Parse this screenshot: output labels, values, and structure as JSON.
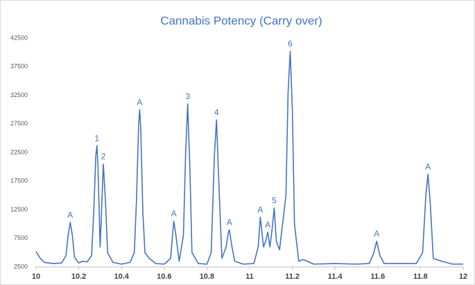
{
  "chart_data": {
    "type": "line",
    "title": "Cannabis Potency (Carry over)",
    "series": [
      {
        "color": "#4472c4",
        "x": [
          10,
          10.01,
          10.02,
          10.04,
          10.08,
          10.12,
          10.14,
          10.15,
          10.16,
          10.17,
          10.18,
          10.2,
          10.22,
          10.24,
          10.26,
          10.27,
          10.28,
          10.285,
          10.29,
          10.3,
          10.315,
          10.325,
          10.335,
          10.36,
          10.4,
          10.44,
          10.46,
          10.47,
          10.48,
          10.485,
          10.49,
          10.5,
          10.51,
          10.53,
          10.56,
          10.6,
          10.63,
          10.64,
          10.645,
          10.655,
          10.67,
          10.69,
          10.7,
          10.71,
          10.72,
          10.73,
          10.76,
          10.8,
          10.82,
          10.835,
          10.845,
          10.855,
          10.87,
          10.89,
          10.9,
          10.905,
          10.915,
          10.93,
          10.97,
          11.02,
          11.04,
          11.05,
          11.065,
          11.075,
          11.085,
          11.095,
          11.105,
          11.115,
          11.125,
          11.14,
          11.17,
          11.18,
          11.19,
          11.2,
          11.21,
          11.23,
          11.25,
          11.3,
          11.4,
          11.5,
          11.56,
          11.58,
          11.595,
          11.61,
          11.63,
          11.7,
          11.78,
          11.81,
          11.825,
          11.835,
          11.845,
          11.86,
          11.9,
          11.95,
          12
        ],
        "values": [
          5200,
          4600,
          4000,
          3300,
          3100,
          3200,
          4500,
          8000,
          10300,
          8000,
          4200,
          3200,
          3500,
          3400,
          4500,
          12000,
          22000,
          23700,
          20000,
          6000,
          20500,
          14000,
          5000,
          3300,
          3000,
          3300,
          5000,
          14000,
          27000,
          30000,
          27000,
          12000,
          5000,
          4000,
          3100,
          3000,
          4000,
          8500,
          10500,
          8000,
          3500,
          8000,
          22000,
          31000,
          20000,
          5000,
          3100,
          3000,
          5000,
          22000,
          28200,
          18000,
          4000,
          6000,
          8500,
          9000,
          6500,
          3500,
          3000,
          3100,
          6000,
          11200,
          6000,
          7000,
          8600,
          6000,
          9000,
          12800,
          7000,
          5500,
          15000,
          33000,
          40200,
          30000,
          10000,
          3500,
          3800,
          3000,
          3100,
          3000,
          3100,
          4800,
          7000,
          4500,
          3100,
          3100,
          3100,
          5000,
          15000,
          18700,
          14000,
          4000,
          3500,
          3000,
          3000
        ]
      }
    ],
    "annotations": [
      {
        "text": "A",
        "x": 10.16,
        "y": 10300
      },
      {
        "text": "1",
        "x": 10.285,
        "y": 23700
      },
      {
        "text": "2",
        "x": 10.315,
        "y": 20500
      },
      {
        "text": "A",
        "x": 10.485,
        "y": 30000
      },
      {
        "text": "A",
        "x": 10.645,
        "y": 10500
      },
      {
        "text": "3",
        "x": 10.71,
        "y": 31000
      },
      {
        "text": "4",
        "x": 10.845,
        "y": 28200
      },
      {
        "text": "A",
        "x": 10.905,
        "y": 9000
      },
      {
        "text": "A",
        "x": 11.05,
        "y": 11200
      },
      {
        "text": "A",
        "x": 11.085,
        "y": 8600
      },
      {
        "text": "5",
        "x": 11.115,
        "y": 12800
      },
      {
        "text": "6",
        "x": 11.19,
        "y": 40200
      },
      {
        "text": "A",
        "x": 11.595,
        "y": 7000
      },
      {
        "text": "A",
        "x": 11.835,
        "y": 18700
      }
    ],
    "xlim": [
      10,
      12
    ],
    "xticks": [
      10,
      10.2,
      10.4,
      10.6,
      10.8,
      11,
      11.2,
      11.4,
      11.6,
      11.8,
      12
    ],
    "ylim": [
      2500,
      42500
    ],
    "yticks": [
      2500,
      7500,
      12500,
      17500,
      22500,
      27500,
      32500,
      37500,
      42500
    ],
    "grid": false
  }
}
